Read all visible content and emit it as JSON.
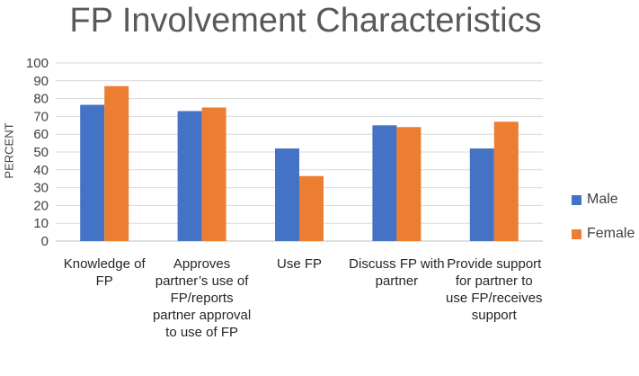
{
  "chart_data": {
    "type": "bar",
    "title": "FP Involvement Characteristics",
    "ylabel": "PERCENT",
    "xlabel": "",
    "ylim": [
      0,
      100
    ],
    "yticks": [
      0,
      10,
      20,
      30,
      40,
      50,
      60,
      70,
      80,
      90,
      100
    ],
    "grid": true,
    "legend_position": "right",
    "categories": [
      "Knowledge of FP",
      "Approves partner’s use of FP/reports partner approval to use of FP",
      "Use FP",
      "Discuss FP with partner",
      "Provide support for partner to use FP/receives support"
    ],
    "series": [
      {
        "name": "Male",
        "color": "#4472C4",
        "values": [
          76.5,
          73,
          52,
          65,
          52
        ]
      },
      {
        "name": "Female",
        "color": "#ED7D31",
        "values": [
          87,
          75,
          36.5,
          64,
          67
        ]
      }
    ]
  }
}
